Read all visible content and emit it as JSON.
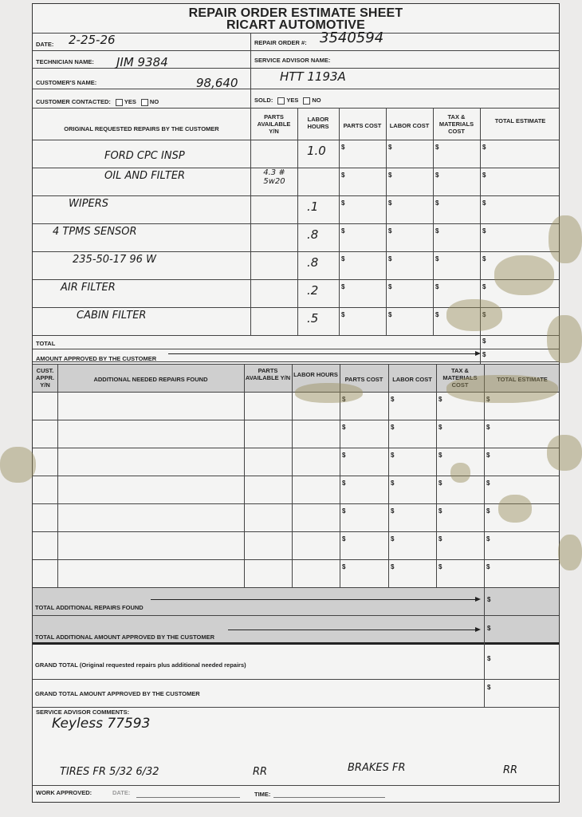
{
  "header": {
    "title": "REPAIR ORDER ESTIMATE SHEET",
    "company": "RICART AUTOMOTIVE"
  },
  "fields": {
    "date_label": "DATE:",
    "date_value": "2-25-26",
    "repair_order_label": "REPAIR ORDER #:",
    "repair_order_value": "3540594",
    "technician_label": "TECHNICIAN NAME:",
    "technician_value": "JIM 9384",
    "advisor_label": "SERVICE ADVISOR NAME:",
    "advisor_value": "HTT 1193A",
    "customer_label": "CUSTOMER'S NAME:",
    "customer_value": "98,640",
    "contacted_label": "CUSTOMER CONTACTED:",
    "sold_label": "SOLD:",
    "yes": "YES",
    "no": "NO"
  },
  "original": {
    "headers": [
      "ORIGINAL REQUESTED REPAIRS BY THE CUSTOMER",
      "PARTS AVAILABLE Y/N",
      "LABOR HOURS",
      "PARTS COST",
      "LABOR COST",
      "TAX & MATERIALS COST",
      "TOTAL ESTIMATE"
    ],
    "rows": [
      {
        "desc": "FORD CPC INSP",
        "parts": "",
        "labor": "1.0"
      },
      {
        "desc": "OIL AND FILTER",
        "parts": "4.3 # 5w20",
        "labor": ""
      },
      {
        "desc": "WIPERS",
        "parts": "",
        "labor": ".1"
      },
      {
        "desc": "4 TPMS SENSOR",
        "parts": "",
        "labor": ".8"
      },
      {
        "desc": "235-50-17   96 W",
        "parts": "",
        "labor": ".8"
      },
      {
        "desc": "AIR FILTER",
        "parts": "",
        "labor": ".2"
      },
      {
        "desc": "CABIN FILTER",
        "parts": "",
        "labor": ".5"
      }
    ],
    "total_label": "TOTAL",
    "approved_label": "AMOUNT APPROVED BY THE CUSTOMER"
  },
  "additional": {
    "headers": [
      "CUST. APPR. Y/N",
      "ADDITIONAL NEEDED REPAIRS FOUND",
      "PARTS AVAILABLE Y/N",
      "LABOR HOURS",
      "PARTS COST",
      "LABOR COST",
      "TAX & MATERIALS COST",
      "TOTAL ESTIMATE"
    ],
    "row_count": 7,
    "total_label": "TOTAL ADDITIONAL REPAIRS FOUND",
    "approved_label": "TOTAL ADDITIONAL AMOUNT APPROVED BY THE CUSTOMER"
  },
  "grand": {
    "total_label": "GRAND TOTAL (Original requested repairs plus additional needed repairs)",
    "approved_label": "GRAND TOTAL AMOUNT APPROVED BY THE CUSTOMER"
  },
  "comments": {
    "label": "SERVICE ADVISOR COMMENTS:",
    "line1": "Keyless 77593",
    "tires": "TIRES   FR  5/32  6/32",
    "tires_rr": "RR",
    "brakes": "BRAKES FR",
    "brakes_rr": "RR"
  },
  "footer": {
    "work_approved": "WORK APPROVED:",
    "date": "DATE:",
    "time": "TIME:"
  },
  "currency": "$"
}
